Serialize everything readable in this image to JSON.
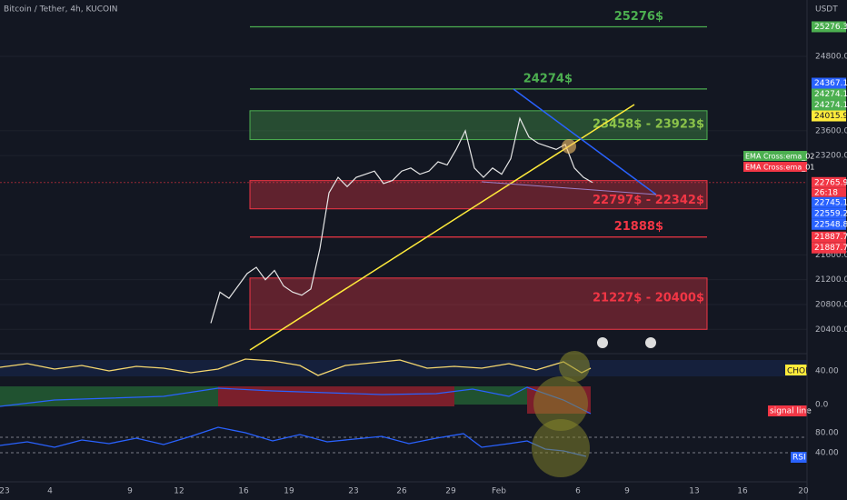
{
  "header": {
    "symbol": "Bitcoin / Tether, 4h, KUCOIN",
    "unit": "USDT"
  },
  "chart_data": {
    "type": "line",
    "ylim": [
      20023,
      25708
    ],
    "yticks": [
      {
        "value": 24800,
        "label": "24800.0"
      },
      {
        "value": 23600,
        "label": "23600.0"
      },
      {
        "value": 23200,
        "label": "23200.0"
      },
      {
        "value": 21600,
        "label": "21600.0"
      },
      {
        "value": 21200,
        "label": "21200.0"
      },
      {
        "value": 20800,
        "label": "20800.0"
      },
      {
        "value": 20400,
        "label": "20400.0"
      }
    ],
    "color": "#e6e6e6",
    "values": [
      20500,
      21000,
      20900,
      21100,
      21300,
      21400,
      21200,
      21350,
      21100,
      21000,
      20950,
      21050,
      21700,
      22600,
      22850,
      22700,
      22850,
      22900,
      22950,
      22750,
      22800,
      22950,
      23000,
      22900,
      22950,
      23100,
      23050,
      23300,
      23600,
      23000,
      22850,
      23000,
      22900,
      23150,
      23800,
      23500,
      23400,
      23350,
      23300,
      23380,
      23000,
      22850,
      22766
    ],
    "levels": [
      {
        "label": "25276$",
        "value": 25276,
        "color": "#4caf50"
      },
      {
        "label": "24274$",
        "value": 24274,
        "color": "#4caf50"
      },
      {
        "label": "21888$",
        "value": 21888,
        "color": "#f23645"
      }
    ],
    "zones": [
      {
        "label": "23458$ - 23923$",
        "top": 23923,
        "bottom": 23458,
        "color": "#4caf50"
      },
      {
        "label": "22797$ - 22342$",
        "top": 22797,
        "bottom": 22342,
        "color": "#f23645"
      },
      {
        "label": "21227$ - 20400$",
        "top": 21227,
        "bottom": 20400,
        "color": "#f23645"
      }
    ],
    "badges": [
      {
        "value": 25276.3,
        "label": "25276.3",
        "color": "#4caf50"
      },
      {
        "value": 24367.1,
        "label": "24367.1",
        "color": "#2962ff"
      },
      {
        "value": 24274.1,
        "label": "24274.1",
        "color": "#4caf50"
      },
      {
        "value": 24274.1,
        "label": "24274.1",
        "color": "#4caf50"
      },
      {
        "value": 24015.9,
        "label": "24015.9",
        "color": "#ffeb3b"
      },
      {
        "value": 22765.9,
        "label": "22765.9",
        "color": "#f23645"
      },
      {
        "value": 22745.1,
        "label": "22745.1",
        "color": "#2962ff"
      },
      {
        "value": 22559.2,
        "label": "22559.2",
        "color": "#2962ff"
      },
      {
        "value": 22548.8,
        "label": "22548.8",
        "color": "#2962ff"
      },
      {
        "value": 21887.7,
        "label": "21887.7",
        "color": "#f23645"
      },
      {
        "value": 21887.7,
        "label": "21887.7",
        "color": "#f23645"
      }
    ],
    "countdown": "26:18",
    "legend": [
      "EMA Cross:ema_02",
      "EMA Cross:ema_01"
    ],
    "x_labels": [
      "23",
      "4",
      "9",
      "12",
      "16",
      "19",
      "23",
      "26",
      "29",
      "Feb",
      "6",
      "9",
      "13",
      "16",
      "20"
    ]
  },
  "indicators": {
    "chop": {
      "name": "CHOP",
      "level": "40.00"
    },
    "macd": {
      "name": "signal line",
      "level": "0.0"
    },
    "rsi": {
      "name": "RSI",
      "upper": "80.00",
      "lower": "40.00"
    }
  }
}
